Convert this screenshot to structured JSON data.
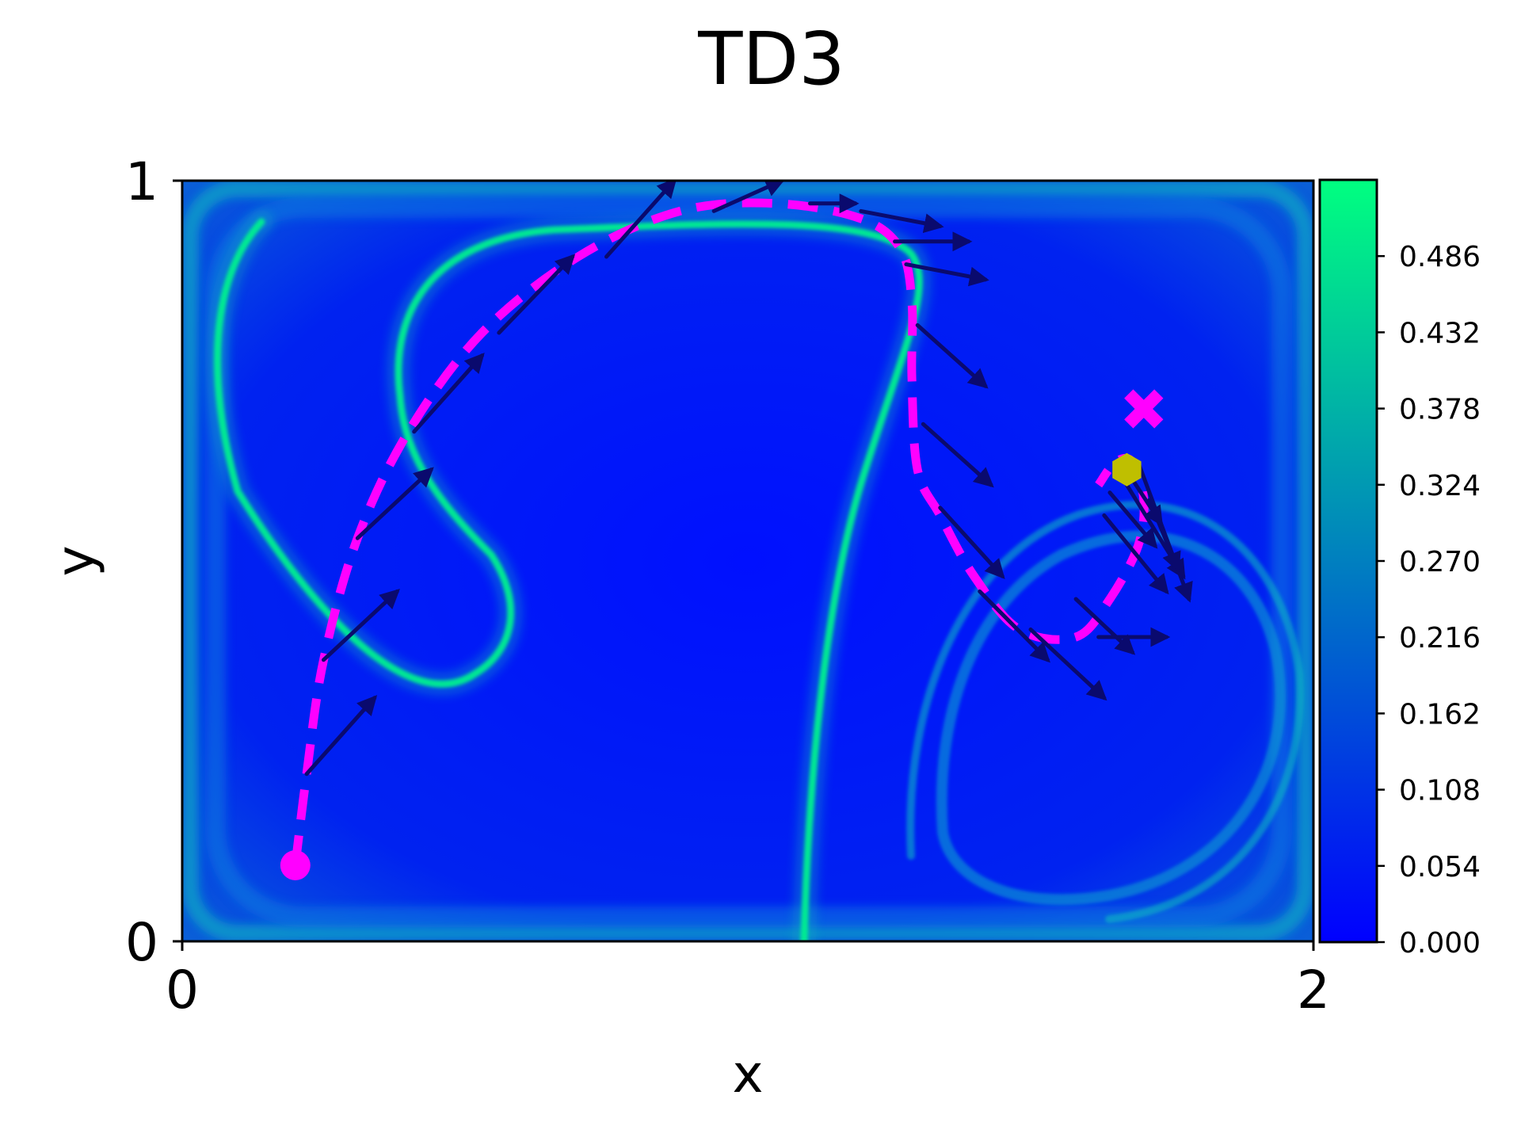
{
  "chart_data": {
    "type": "heatmap",
    "title": "TD3",
    "xlabel": "x",
    "ylabel": "y",
    "xlim": [
      0,
      2
    ],
    "ylim": [
      0,
      1
    ],
    "x_ticks": [
      "0",
      "2"
    ],
    "y_ticks": [
      "0",
      "1"
    ],
    "grid": false,
    "colormap": {
      "low": "#0000ff",
      "high": "#00ff80"
    },
    "colorbar": {
      "range": [
        0,
        0.54
      ],
      "ticks": [
        "0.000",
        "0.054",
        "0.108",
        "0.162",
        "0.216",
        "0.270",
        "0.324",
        "0.378",
        "0.432",
        "0.486"
      ]
    },
    "trajectory": {
      "color": "#ff00ff",
      "style": "dashed",
      "points": [
        [
          0.2,
          0.1
        ],
        [
          0.22,
          0.22
        ],
        [
          0.25,
          0.37
        ],
        [
          0.31,
          0.53
        ],
        [
          0.4,
          0.67
        ],
        [
          0.53,
          0.8
        ],
        [
          0.7,
          0.9
        ],
        [
          0.88,
          0.96
        ],
        [
          1.05,
          0.97
        ],
        [
          1.2,
          0.95
        ],
        [
          1.27,
          0.91
        ],
        [
          1.29,
          0.84
        ],
        [
          1.29,
          0.74
        ],
        [
          1.3,
          0.62
        ],
        [
          1.34,
          0.56
        ],
        [
          1.4,
          0.48
        ],
        [
          1.48,
          0.41
        ],
        [
          1.58,
          0.4
        ],
        [
          1.64,
          0.45
        ],
        [
          1.69,
          0.52
        ],
        [
          1.7,
          0.58
        ],
        [
          1.68,
          0.63
        ],
        [
          1.65,
          0.63
        ],
        [
          1.62,
          0.6
        ]
      ]
    },
    "arrows": {
      "color": "#0a0a6e",
      "segments": [
        [
          0.22,
          0.22,
          0.34,
          0.32
        ],
        [
          0.25,
          0.37,
          0.38,
          0.46
        ],
        [
          0.31,
          0.53,
          0.44,
          0.62
        ],
        [
          0.41,
          0.67,
          0.53,
          0.77
        ],
        [
          0.56,
          0.8,
          0.69,
          0.9
        ],
        [
          0.75,
          0.9,
          0.87,
          1.0
        ],
        [
          0.94,
          0.96,
          1.06,
          1.0
        ],
        [
          1.11,
          0.97,
          1.19,
          0.97
        ],
        [
          1.2,
          0.96,
          1.34,
          0.94
        ],
        [
          1.26,
          0.92,
          1.39,
          0.92
        ],
        [
          1.28,
          0.89,
          1.42,
          0.87
        ],
        [
          1.3,
          0.81,
          1.42,
          0.73
        ],
        [
          1.31,
          0.68,
          1.43,
          0.6
        ],
        [
          1.34,
          0.57,
          1.45,
          0.48
        ],
        [
          1.41,
          0.46,
          1.53,
          0.37
        ],
        [
          1.5,
          0.41,
          1.63,
          0.32
        ],
        [
          1.62,
          0.4,
          1.74,
          0.4
        ],
        [
          1.58,
          0.45,
          1.68,
          0.38
        ],
        [
          1.69,
          0.63,
          1.78,
          0.45
        ],
        [
          1.67,
          0.6,
          1.77,
          0.48
        ],
        [
          1.71,
          0.58,
          1.76,
          0.49
        ],
        [
          1.64,
          0.59,
          1.72,
          0.52
        ],
        [
          1.66,
          0.63,
          1.73,
          0.55
        ],
        [
          1.63,
          0.56,
          1.74,
          0.46
        ]
      ]
    },
    "start": {
      "x": 0.2,
      "y": 0.1,
      "marker": "circle",
      "color": "#ff00ff"
    },
    "target": {
      "x": 1.7,
      "y": 0.7,
      "marker": "x",
      "color": "#ff00ff"
    },
    "end": {
      "x": 1.67,
      "y": 0.62,
      "marker": "hexagon",
      "color": "#bfbf00"
    }
  }
}
